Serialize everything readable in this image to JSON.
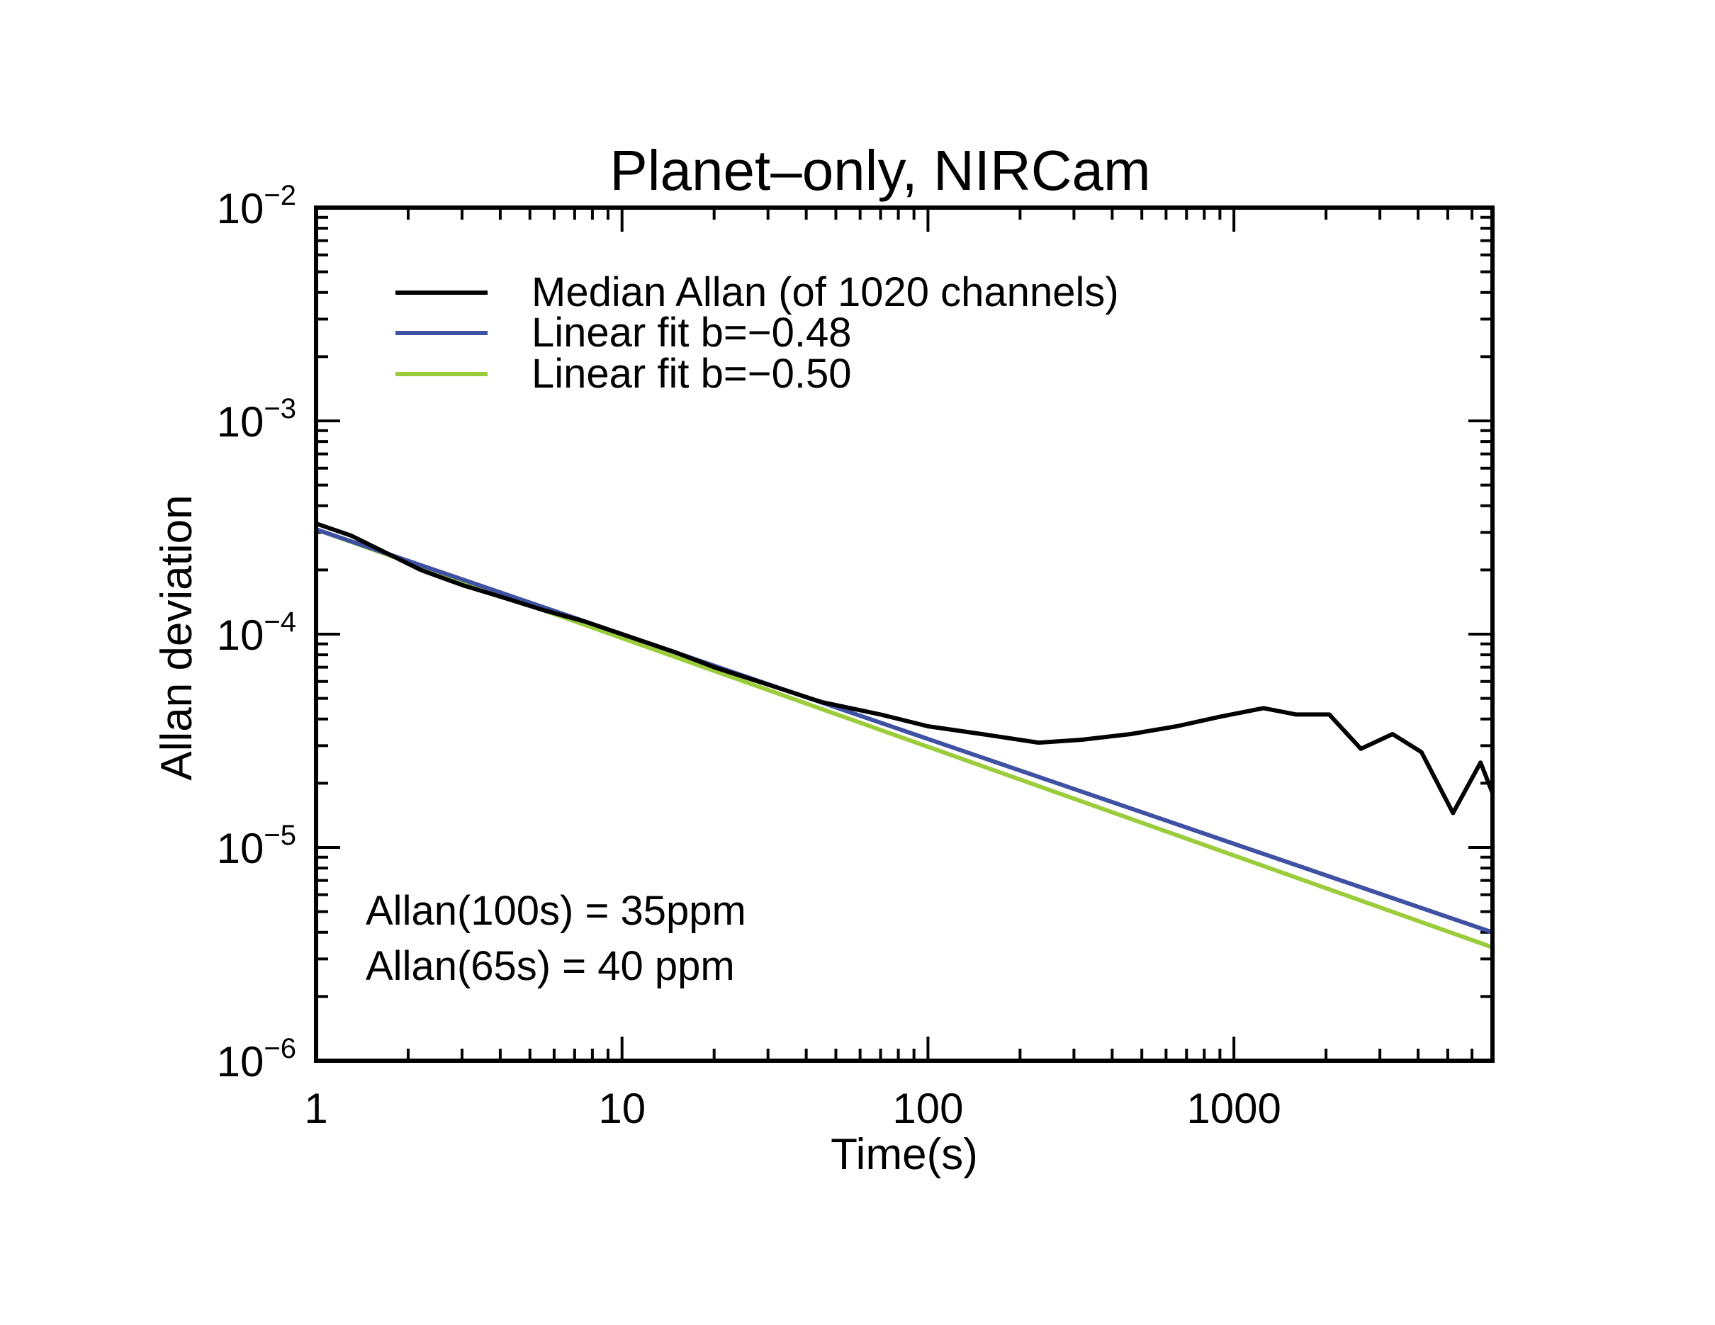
{
  "chart_data": {
    "type": "line",
    "title": "Planet–only, NIRCam",
    "xlabel": "Time(s)",
    "ylabel": "Allan deviation",
    "xscale": "log",
    "yscale": "log",
    "xlim": [
      1,
      7000
    ],
    "ylim": [
      1e-06,
      0.01
    ],
    "x_ticks": [
      {
        "value": 1,
        "label": "1"
      },
      {
        "value": 10,
        "label": "10"
      },
      {
        "value": 100,
        "label": "100"
      },
      {
        "value": 1000,
        "label": "1000"
      }
    ],
    "y_ticks": [
      {
        "value": 1e-06,
        "base": "10",
        "exp": "−6"
      },
      {
        "value": 1e-05,
        "base": "10",
        "exp": "−5"
      },
      {
        "value": 0.0001,
        "base": "10",
        "exp": "−4"
      },
      {
        "value": 0.001,
        "base": "10",
        "exp": "−3"
      },
      {
        "value": 0.01,
        "base": "10",
        "exp": "−2"
      }
    ],
    "legend_position": "top-left",
    "series": [
      {
        "name": "Median Allan (of 1020 channels)",
        "color": "#000000",
        "x": [
          1,
          1.3,
          1.7,
          2.2,
          3,
          4,
          5.5,
          7.5,
          10,
          15,
          20,
          30,
          45,
          70,
          100,
          150,
          230,
          320,
          460,
          650,
          900,
          1250,
          1600,
          2050,
          2600,
          3300,
          4100,
          5200,
          6400,
          7000
        ],
        "y": [
          0.00033,
          0.00029,
          0.00024,
          0.0002,
          0.00017,
          0.00015,
          0.00013,
          0.000115,
          0.0001,
          8.2e-05,
          7e-05,
          5.8e-05,
          4.8e-05,
          4.2e-05,
          3.7e-05,
          3.4e-05,
          3.1e-05,
          3.2e-05,
          3.4e-05,
          3.7e-05,
          4.1e-05,
          4.5e-05,
          4.2e-05,
          4.2e-05,
          2.9e-05,
          3.4e-05,
          2.8e-05,
          1.45e-05,
          2.5e-05,
          1.8e-05
        ]
      },
      {
        "name": "Linear fit b=−0.48",
        "color": "#3f51a3",
        "slope": -0.48,
        "x": [
          1,
          7000
        ],
        "y": [
          0.00031,
          4e-06
        ]
      },
      {
        "name": "Linear fit b=−0.50",
        "color": "#9bcc3b",
        "slope": -0.5,
        "x": [
          1,
          7000
        ],
        "y": [
          0.00031,
          3.4e-06
        ]
      }
    ],
    "annotations": [
      "Allan(100s) = 35ppm",
      "Allan(65s) = 40 ppm"
    ]
  }
}
